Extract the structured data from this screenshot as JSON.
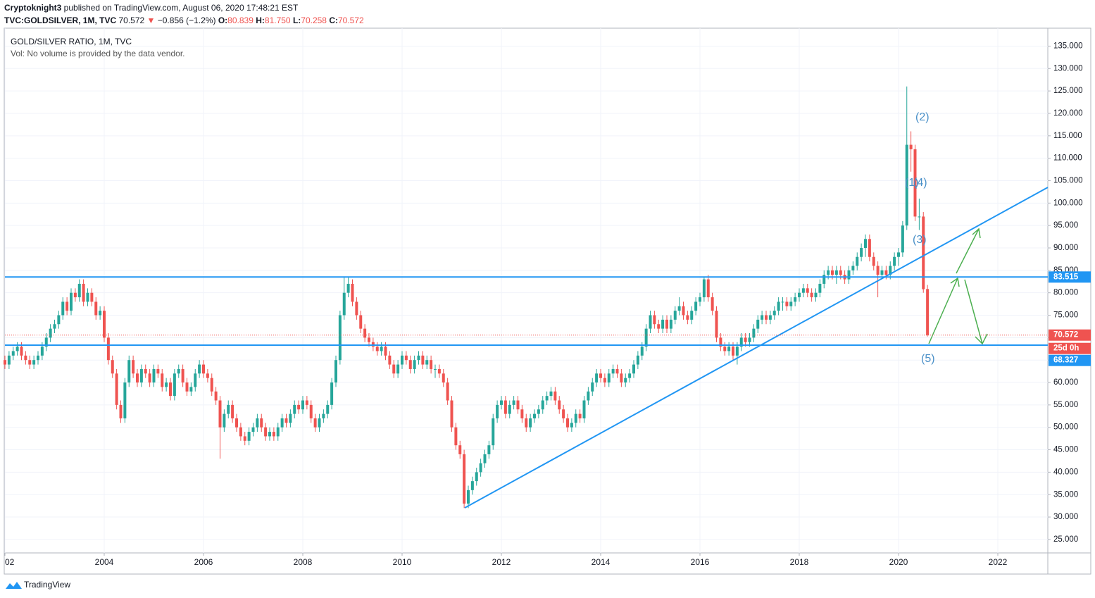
{
  "header": {
    "author": "Cryptoknight3",
    "published": " published on TradingView.com, August 06, 2020 17:48:21 EST",
    "symbol": "TVC:GOLDSILVER, 1M, TVC",
    "last": "70.572",
    "arrow": "▼",
    "change": "−0.856 (−1.2%)",
    "ohlc": [
      [
        "O:",
        "80.839"
      ],
      [
        "H:",
        "81.750"
      ],
      [
        "L:",
        "70.258"
      ],
      [
        "C:",
        "70.572"
      ]
    ]
  },
  "legend": {
    "title": "GOLD/SILVER RATIO, 1M, TVC",
    "volume": "Vol: No volume is provided by the data vendor."
  },
  "footer": {
    "brand": "TradingView"
  },
  "chart_data": {
    "type": "candlestick",
    "up_color": "#26a69a",
    "down_color": "#ef5350",
    "grid": true,
    "ylim": [
      22,
      139
    ],
    "yticks": [
      {
        "value": 25,
        "label": "25.000"
      },
      {
        "value": 30,
        "label": "30.000"
      },
      {
        "value": 35,
        "label": "35.000"
      },
      {
        "value": 40,
        "label": "40.000"
      },
      {
        "value": 45,
        "label": "45.000"
      },
      {
        "value": 50,
        "label": "50.000"
      },
      {
        "value": 55,
        "label": "55.000"
      },
      {
        "value": 60,
        "label": "60.000"
      },
      {
        "value": 65,
        "label": "65.000"
      },
      {
        "value": 70,
        "label": "70.000"
      },
      {
        "value": 75,
        "label": "75.000"
      },
      {
        "value": 80,
        "label": "80.000"
      },
      {
        "value": 85,
        "label": "85.000"
      },
      {
        "value": 90,
        "label": "90.000"
      },
      {
        "value": 95,
        "label": "95.000"
      },
      {
        "value": 100,
        "label": "100.000"
      },
      {
        "value": 105,
        "label": "105.000"
      },
      {
        "value": 110,
        "label": "110.000"
      },
      {
        "value": 115,
        "label": "115.000"
      },
      {
        "value": 120,
        "label": "120.000"
      },
      {
        "value": 125,
        "label": "125.000"
      },
      {
        "value": 130,
        "label": "130.000"
      },
      {
        "value": 135,
        "label": "135.000"
      }
    ],
    "xlim": [
      0,
      251.5
    ],
    "xticks": [
      {
        "value": 0,
        "label": "02"
      },
      {
        "value": 24,
        "label": "2004"
      },
      {
        "value": 48,
        "label": "2006"
      },
      {
        "value": 72,
        "label": "2008"
      },
      {
        "value": 96,
        "label": "2010"
      },
      {
        "value": 120,
        "label": "2012"
      },
      {
        "value": 144,
        "label": "2014"
      },
      {
        "value": 168,
        "label": "2016"
      },
      {
        "value": 192,
        "label": "2018"
      },
      {
        "value": 216,
        "label": "2020"
      },
      {
        "value": 240,
        "label": "2022"
      }
    ],
    "levels": [
      {
        "value": 83.515,
        "color": "#2196f3"
      },
      {
        "value": 68.327,
        "color": "#2196f3"
      }
    ],
    "last_price": 70.572,
    "countdown": "25d 0h",
    "waves": [
      "(2)",
      "(1)",
      "(4)",
      "(3)",
      "(5)"
    ],
    "candles": [
      [
        65,
        66,
        63,
        64
      ],
      [
        64,
        67,
        63,
        66
      ],
      [
        66,
        68,
        65,
        67
      ],
      [
        67,
        69,
        66,
        68
      ],
      [
        68,
        69,
        65,
        66
      ],
      [
        66,
        67,
        64,
        65
      ],
      [
        65,
        66,
        63,
        64
      ],
      [
        64,
        66,
        63,
        65
      ],
      [
        65,
        67,
        64,
        66
      ],
      [
        66,
        69,
        65,
        68
      ],
      [
        68,
        71,
        67,
        70
      ],
      [
        70,
        73,
        69,
        72
      ],
      [
        72,
        74,
        71,
        73
      ],
      [
        73,
        76,
        72,
        75
      ],
      [
        75,
        79,
        74,
        78
      ],
      [
        78,
        79,
        75,
        76
      ],
      [
        76,
        81,
        75,
        80
      ],
      [
        80,
        81,
        78,
        79
      ],
      [
        79,
        83,
        78,
        82
      ],
      [
        82,
        83,
        77,
        78
      ],
      [
        78,
        81,
        77,
        80
      ],
      [
        80,
        81,
        77,
        78
      ],
      [
        78,
        79,
        74,
        75
      ],
      [
        75,
        77,
        74,
        76
      ],
      [
        76,
        77,
        69,
        70
      ],
      [
        70,
        71,
        64,
        65
      ],
      [
        65,
        66,
        61,
        62
      ],
      [
        62,
        63,
        54,
        55
      ],
      [
        55,
        56,
        51,
        52
      ],
      [
        52,
        61,
        51,
        60
      ],
      [
        60,
        66,
        59,
        65
      ],
      [
        65,
        66,
        61,
        62
      ],
      [
        62,
        63,
        59,
        60
      ],
      [
        60,
        64,
        59,
        63
      ],
      [
        63,
        64,
        61,
        62
      ],
      [
        62,
        63,
        59,
        60
      ],
      [
        60,
        64,
        59,
        63
      ],
      [
        63,
        64,
        61,
        62
      ],
      [
        62,
        63,
        58,
        59
      ],
      [
        59,
        61,
        58,
        60
      ],
      [
        60,
        61,
        56,
        57
      ],
      [
        57,
        63,
        56,
        62
      ],
      [
        62,
        64,
        61,
        63
      ],
      [
        63,
        64,
        59,
        60
      ],
      [
        60,
        61,
        57,
        58
      ],
      [
        58,
        60,
        57,
        59
      ],
      [
        59,
        63,
        58,
        62
      ],
      [
        62,
        65,
        61,
        64
      ],
      [
        64,
        65,
        61,
        62
      ],
      [
        62,
        63,
        60,
        61
      ],
      [
        61,
        62,
        57,
        58
      ],
      [
        58,
        59,
        55,
        56
      ],
      [
        56,
        57,
        43,
        50
      ],
      [
        50,
        54,
        49,
        53
      ],
      [
        53,
        56,
        52,
        55
      ],
      [
        55,
        56,
        51,
        52
      ],
      [
        52,
        53,
        49,
        50
      ],
      [
        50,
        51,
        47,
        48
      ],
      [
        48,
        49,
        46,
        47
      ],
      [
        47,
        50,
        46,
        49
      ],
      [
        49,
        51,
        48,
        50
      ],
      [
        50,
        53,
        49,
        52
      ],
      [
        52,
        53,
        49,
        50
      ],
      [
        50,
        51,
        47,
        48
      ],
      [
        48,
        50,
        47,
        49
      ],
      [
        49,
        50,
        47,
        48
      ],
      [
        48,
        51,
        47,
        50
      ],
      [
        50,
        53,
        49,
        52
      ],
      [
        52,
        53,
        50,
        51
      ],
      [
        51,
        54,
        50,
        53
      ],
      [
        53,
        56,
        52,
        55
      ],
      [
        55,
        56,
        53,
        54
      ],
      [
        54,
        57,
        53,
        56
      ],
      [
        56,
        57,
        54,
        55
      ],
      [
        55,
        56,
        51,
        52
      ],
      [
        52,
        53,
        49,
        50
      ],
      [
        50,
        53,
        49,
        52
      ],
      [
        52,
        54,
        51,
        53
      ],
      [
        53,
        56,
        52,
        55
      ],
      [
        55,
        61,
        54,
        60
      ],
      [
        60,
        66,
        59,
        65
      ],
      [
        65,
        76,
        64,
        75
      ],
      [
        75,
        83.5,
        74,
        80
      ],
      [
        80,
        83.5,
        79,
        82
      ],
      [
        82,
        83,
        77,
        78
      ],
      [
        78,
        79,
        74,
        75
      ],
      [
        75,
        76,
        71,
        72
      ],
      [
        72,
        73,
        69,
        70
      ],
      [
        70,
        71,
        68,
        69
      ],
      [
        69,
        70,
        67,
        68
      ],
      [
        68,
        69,
        66,
        67
      ],
      [
        67,
        69,
        66,
        68
      ],
      [
        68,
        69,
        65,
        66
      ],
      [
        66,
        67,
        63,
        64
      ],
      [
        64,
        65,
        61,
        62
      ],
      [
        62,
        65,
        61,
        64
      ],
      [
        64,
        67,
        63,
        66
      ],
      [
        66,
        67,
        64,
        65
      ],
      [
        65,
        66,
        62,
        63
      ],
      [
        63,
        66,
        62,
        65
      ],
      [
        65,
        67,
        64,
        66
      ],
      [
        66,
        67,
        63,
        64
      ],
      [
        64,
        66,
        63,
        65
      ],
      [
        65,
        66,
        62,
        63
      ],
      [
        63,
        64,
        61,
        63
      ],
      [
        63,
        64,
        61,
        62
      ],
      [
        62,
        63,
        59,
        60
      ],
      [
        60,
        61,
        55,
        56
      ],
      [
        56,
        57,
        49,
        50
      ],
      [
        50,
        51,
        45,
        46
      ],
      [
        46,
        47,
        43,
        44
      ],
      [
        44,
        45,
        32,
        33
      ],
      [
        33,
        37,
        32,
        36
      ],
      [
        36,
        39,
        35,
        38
      ],
      [
        38,
        41,
        37,
        40
      ],
      [
        40,
        43,
        39,
        42
      ],
      [
        42,
        45,
        41,
        44
      ],
      [
        44,
        47,
        43,
        46
      ],
      [
        46,
        53,
        45,
        52
      ],
      [
        52,
        56,
        51,
        55
      ],
      [
        55,
        57,
        54,
        56
      ],
      [
        56,
        57,
        52,
        53
      ],
      [
        53,
        56,
        52,
        55
      ],
      [
        55,
        57,
        54,
        56
      ],
      [
        56,
        57,
        53,
        54
      ],
      [
        54,
        55,
        51,
        52
      ],
      [
        52,
        53,
        49,
        50
      ],
      [
        50,
        53,
        49,
        52
      ],
      [
        52,
        54,
        51,
        53
      ],
      [
        53,
        55,
        52,
        54
      ],
      [
        54,
        57,
        53,
        56
      ],
      [
        56,
        58,
        55,
        57
      ],
      [
        57,
        59,
        56,
        58
      ],
      [
        58,
        59,
        55,
        56
      ],
      [
        56,
        57,
        53,
        54
      ],
      [
        54,
        55,
        51,
        52
      ],
      [
        52,
        53,
        49,
        50
      ],
      [
        50,
        52,
        49,
        51
      ],
      [
        51,
        54,
        50,
        53
      ],
      [
        53,
        54,
        51,
        52
      ],
      [
        52,
        57,
        51,
        56
      ],
      [
        56,
        59,
        55,
        58
      ],
      [
        58,
        61,
        57,
        60
      ],
      [
        60,
        63,
        59,
        62
      ],
      [
        62,
        63,
        60,
        61
      ],
      [
        61,
        62,
        59,
        60
      ],
      [
        60,
        63,
        59,
        62
      ],
      [
        62,
        64,
        61,
        63
      ],
      [
        63,
        64,
        61,
        62
      ],
      [
        62,
        63,
        59,
        60
      ],
      [
        60,
        62,
        59,
        61
      ],
      [
        61,
        63,
        60,
        62
      ],
      [
        62,
        65,
        61,
        64
      ],
      [
        64,
        67,
        63,
        66
      ],
      [
        66,
        69,
        65,
        68
      ],
      [
        68,
        73,
        67,
        72
      ],
      [
        72,
        76,
        71,
        75
      ],
      [
        75,
        76,
        72,
        73
      ],
      [
        73,
        74,
        71,
        72
      ],
      [
        72,
        75,
        71,
        74
      ],
      [
        74,
        75,
        71,
        72
      ],
      [
        72,
        75,
        71,
        74
      ],
      [
        74,
        77,
        73,
        76
      ],
      [
        76,
        79,
        75,
        77
      ],
      [
        77,
        78,
        74,
        75
      ],
      [
        75,
        76,
        73,
        74
      ],
      [
        74,
        77,
        73,
        76
      ],
      [
        76,
        79,
        75,
        78
      ],
      [
        78,
        80,
        77,
        79
      ],
      [
        79,
        83.5,
        78,
        83
      ],
      [
        83,
        84,
        78,
        79
      ],
      [
        79,
        80,
        75,
        76
      ],
      [
        76,
        77,
        69,
        70
      ],
      [
        70,
        71,
        67,
        68
      ],
      [
        68,
        69,
        66,
        67
      ],
      [
        67,
        69,
        66,
        68
      ],
      [
        68,
        69,
        65,
        66
      ],
      [
        66,
        69,
        64,
        68
      ],
      [
        68,
        71,
        67,
        70
      ],
      [
        70,
        71,
        68,
        69
      ],
      [
        69,
        71,
        68,
        70
      ],
      [
        70,
        73,
        69,
        72
      ],
      [
        72,
        75,
        71,
        74
      ],
      [
        74,
        76,
        73,
        75
      ],
      [
        75,
        76,
        73,
        74
      ],
      [
        74,
        76,
        73,
        75
      ],
      [
        75,
        77,
        74,
        76
      ],
      [
        76,
        79,
        75,
        78
      ],
      [
        78,
        79,
        76,
        78
      ],
      [
        78,
        79,
        76,
        77
      ],
      [
        77,
        79,
        76,
        78
      ],
      [
        78,
        80,
        77,
        79
      ],
      [
        79,
        81,
        78,
        80
      ],
      [
        80,
        82,
        79,
        81
      ],
      [
        81,
        82,
        79,
        80
      ],
      [
        80,
        81,
        78,
        79
      ],
      [
        79,
        81,
        78,
        80
      ],
      [
        80,
        83,
        79,
        82
      ],
      [
        82,
        85,
        81,
        84
      ],
      [
        84,
        86,
        83,
        85
      ],
      [
        85,
        86,
        83,
        84
      ],
      [
        84,
        86,
        82,
        85
      ],
      [
        85,
        86,
        83,
        84
      ],
      [
        84,
        85,
        82,
        83
      ],
      [
        83,
        86,
        82,
        85
      ],
      [
        85,
        87,
        84,
        86
      ],
      [
        86,
        89,
        85,
        88
      ],
      [
        88,
        91,
        87,
        90
      ],
      [
        90,
        93,
        88,
        92
      ],
      [
        92,
        93,
        87,
        88
      ],
      [
        88,
        89,
        85,
        86
      ],
      [
        86,
        87,
        79,
        84
      ],
      [
        84,
        86,
        83,
        85
      ],
      [
        85,
        86,
        83,
        84
      ],
      [
        84,
        87,
        83,
        86
      ],
      [
        86,
        89,
        85,
        88
      ],
      [
        88,
        90,
        86,
        89
      ],
      [
        89,
        96,
        88,
        95
      ],
      [
        95,
        126,
        94,
        113
      ],
      [
        113,
        116,
        107,
        112
      ],
      [
        112,
        113,
        96,
        97
      ],
      [
        97,
        101,
        94,
        97
      ],
      [
        97,
        98,
        80,
        80.8
      ],
      [
        80.839,
        81.75,
        70.258,
        70.572
      ]
    ]
  }
}
